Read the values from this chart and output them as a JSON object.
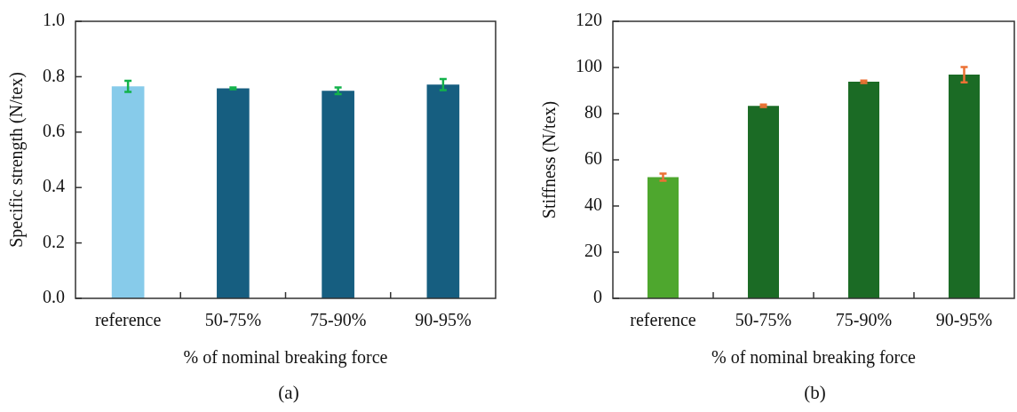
{
  "chart_data": [
    {
      "type": "bar",
      "categories": [
        "reference",
        "50-75%",
        "75-90%",
        "90-95%"
      ],
      "values": [
        0.765,
        0.758,
        0.749,
        0.772
      ],
      "colors": [
        "#87cbea",
        "#165e80",
        "#165e80",
        "#165e80"
      ],
      "errors": [
        0.02,
        0.003,
        0.012,
        0.02
      ],
      "ylim": [
        0,
        1
      ],
      "yticks": [
        {
          "value": 0,
          "label": "0.0"
        },
        {
          "value": 0.2,
          "label": "0.2"
        },
        {
          "value": 0.4,
          "label": "0.4"
        },
        {
          "value": 0.6,
          "label": "0.6"
        },
        {
          "value": 0.8,
          "label": "0.8"
        },
        {
          "value": 1,
          "label": "1.0"
        }
      ],
      "xlabel": "% of nominal breaking force",
      "ylabel": "Specific strength (N/tex)",
      "annotations": [
        "(a)"
      ],
      "grid": false
    },
    {
      "type": "bar",
      "categories": [
        "reference",
        "50-75%",
        "75-90%",
        "90-95%"
      ],
      "values": [
        52.5,
        83.4,
        93.8,
        96.9
      ],
      "colors": [
        "#4ea72e",
        "#1b6b25",
        "#1b6b25",
        "#1b6b25"
      ],
      "errors": [
        1.5,
        0.5,
        0.5,
        3.3
      ],
      "ylim": [
        0,
        120
      ],
      "yticks": [
        0,
        20,
        40,
        60,
        80,
        100,
        120
      ],
      "xlabel": "% of nominal breaking force",
      "ylabel": "Stiffness (N/tex)",
      "annotations": [
        "(b)"
      ],
      "grid": false
    }
  ]
}
